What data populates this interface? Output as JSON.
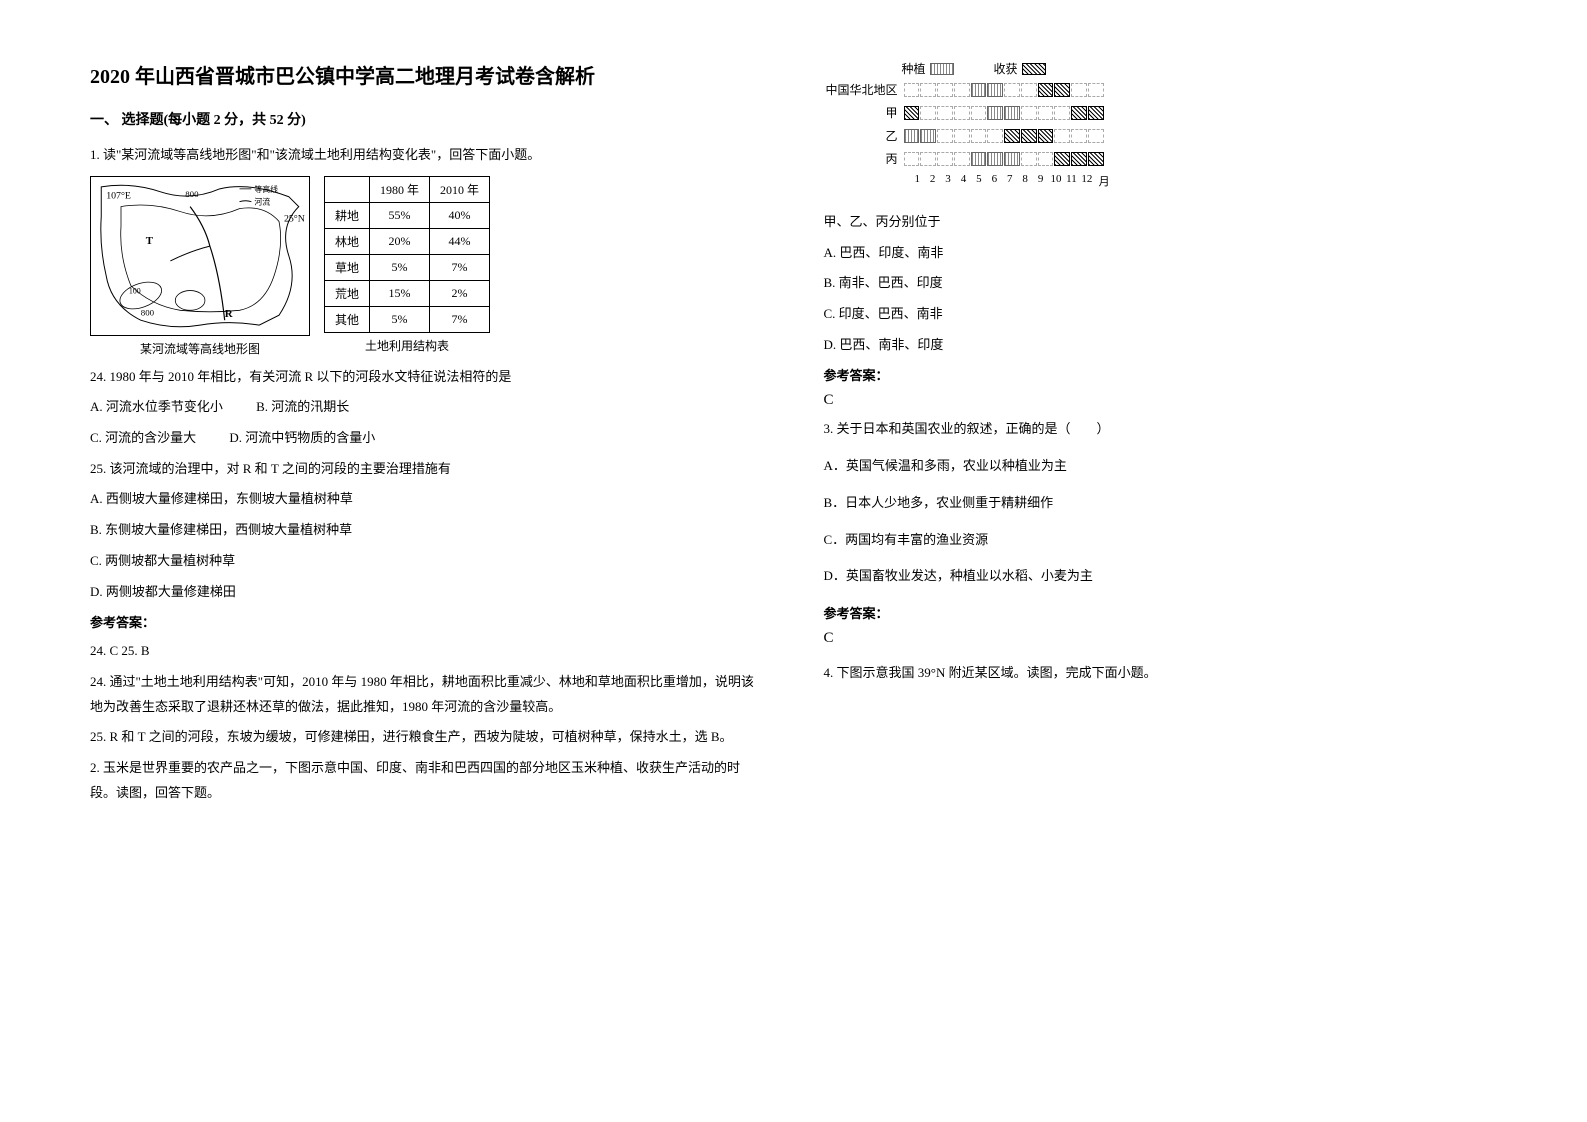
{
  "title": "2020 年山西省晋城市巴公镇中学高二地理月考试卷含解析",
  "section1": "一、 选择题(每小题 2 分，共 52 分)",
  "q1_intro": "1. 读\"某河流域等高线地形图\"和\"该流域土地利用结构变化表\"，回答下面小题。",
  "map": {
    "lon_label": "107°E",
    "lat_label": "25°N",
    "legend_contour": "等高线",
    "legend_river": "河流",
    "caption": "某河流域等高线地形图",
    "r_label": "R",
    "t_label": "T",
    "contours": [
      "800",
      "800",
      "100"
    ]
  },
  "land_table": {
    "caption": "土地利用结构表",
    "headers": [
      "",
      "1980 年",
      "2010 年"
    ],
    "rows": [
      [
        "耕地",
        "55%",
        "40%"
      ],
      [
        "林地",
        "20%",
        "44%"
      ],
      [
        "草地",
        "5%",
        "7%"
      ],
      [
        "荒地",
        "15%",
        "2%"
      ],
      [
        "其他",
        "5%",
        "7%"
      ]
    ]
  },
  "q24": "24.  1980 年与 2010 年相比，有关河流 R 以下的河段水文特征说法相符的是",
  "q24_opts": {
    "a": "A.  河流水位季节变化小",
    "b": "B.  河流的汛期长",
    "c": "C.  河流的含沙量大",
    "d": "D.  河流中钙物质的含量小"
  },
  "q25": "25.  该河流域的治理中，对 R 和 T 之间的河段的主要治理措施有",
  "q25_opts": {
    "a": "A.  西侧坡大量修建梯田，东侧坡大量植树种草",
    "b": "B.  东侧坡大量修建梯田，西侧坡大量植树种草",
    "c": "C.  两侧坡都大量植树种草",
    "d": "D.  两侧坡都大量修建梯田"
  },
  "answer_label": "参考答案：",
  "q1_answers": "24.  C          25.  B",
  "q1_explain_24": "24.  通过\"土地土地利用结构表\"可知，2010 年与 1980 年相比，耕地面积比重减少、林地和草地面积比重增加，说明该地为改善生态采取了退耕还林还草的做法，据此推知，1980 年河流的含沙量较高。",
  "q1_explain_25": "25.  R 和 T 之间的河段，东坡为缓坡，可修建梯田，进行粮食生产，西坡为陡坡，可植树种草，保持水土，选 B。",
  "q2_intro": "    2. 玉米是世界重要的农产品之一，下图示意中国、印度、南非和巴西四国的部分地区玉米种植、收获生产活动的时段。读图，回答下题。",
  "chart": {
    "legend_plant": "种植",
    "legend_harvest": "收获",
    "rows": [
      "中国华北地区",
      "甲",
      "乙",
      "丙"
    ],
    "months_label": "月",
    "months": [
      "1",
      "2",
      "3",
      "4",
      "5",
      "6",
      "7",
      "8",
      "9",
      "10",
      "11",
      "12"
    ],
    "data": {
      "china_north": {
        "plant": [
          5,
          6
        ],
        "harvest": [
          9,
          10
        ]
      },
      "jia": {
        "plant": [
          6,
          7
        ],
        "harvest": [
          1,
          11,
          12
        ]
      },
      "yi": {
        "plant": [
          1,
          2
        ],
        "harvest": [
          7,
          8,
          9
        ]
      },
      "bing": {
        "plant": [
          5,
          6,
          7
        ],
        "harvest": [
          10,
          11,
          12
        ]
      }
    }
  },
  "q2_stem": "  甲、乙、丙分别位于",
  "q2_opts": {
    "a": "A. 巴西、印度、南非",
    "b": "B. 南非、巴西、印度",
    "c": "C. 印度、巴西、南非",
    "d": "D. 巴西、南非、印度"
  },
  "q2_answer": "C",
  "q3": "3. 关于日本和英国农业的叙述，正确的是（　　）",
  "q3_opts": {
    "a": "A．英国气候温和多雨，农业以种植业为主",
    "b": "B．日本人少地多，农业侧重于精耕细作",
    "c": "C．两国均有丰富的渔业资源",
    "d": "D．英国畜牧业发达，种植业以水稻、小麦为主"
  },
  "q3_answer": "C",
  "q4": "4. 下图示意我国 39°N 附近某区域。读图，完成下面小题。"
}
